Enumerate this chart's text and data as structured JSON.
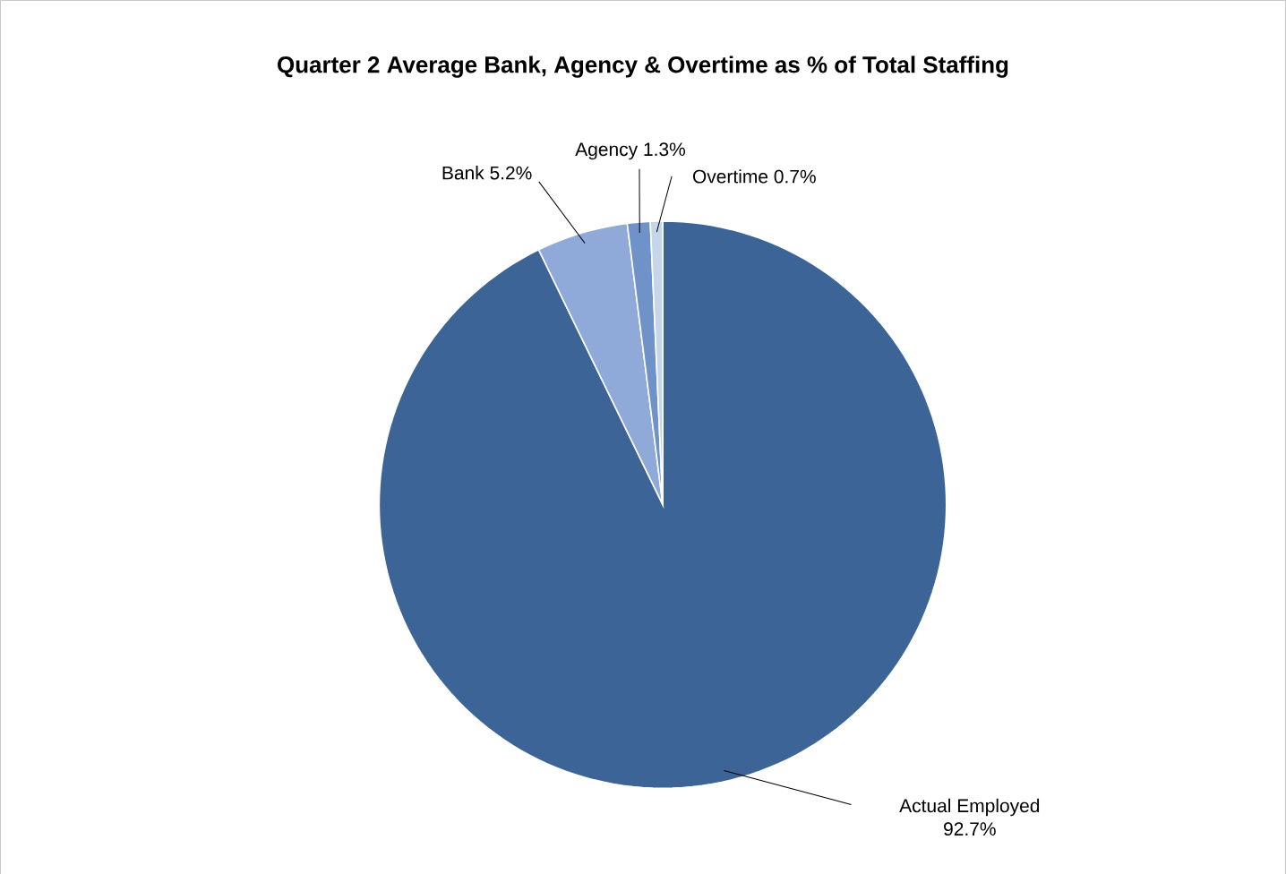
{
  "chart_data": {
    "type": "pie",
    "title": "Quarter 2 Average Bank, Agency & Overtime as % of Total Staffing",
    "categories": [
      "Actual Employed",
      "Bank",
      "Agency",
      "Overtime"
    ],
    "values": [
      92.7,
      5.2,
      1.3,
      0.7
    ],
    "value_labels": [
      "92.7%",
      "5.2%",
      "1.3%",
      "0.7%"
    ],
    "colors": [
      "#3c6497",
      "#8faad9",
      "#6f93c8",
      "#c5d5ea"
    ],
    "legend": false
  }
}
